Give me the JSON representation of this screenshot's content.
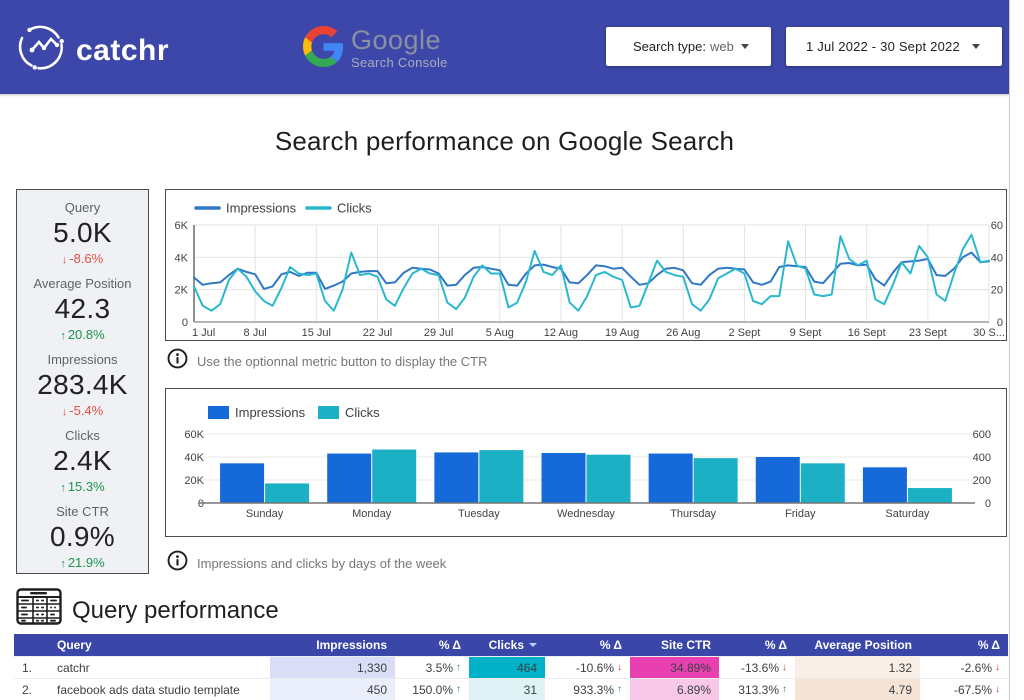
{
  "banner": {
    "brand": "catchr",
    "connector": {
      "name": "Google",
      "subtitle": "Search Console"
    },
    "search_type_control": {
      "label": "Search type:",
      "value": "web"
    },
    "date_range_control": {
      "value": "1 Jul 2022 - 30 Sept 2022"
    },
    "background_color": "#3c47a9"
  },
  "page_title": "Search performance on Google Search",
  "scorecards": [
    {
      "label": "Query",
      "value": "5.0K",
      "delta": "-8.6%",
      "direction": "down",
      "trend": "negative"
    },
    {
      "label": "Average Position",
      "value": "42.3",
      "delta": "20.8%",
      "direction": "up",
      "trend": "positive"
    },
    {
      "label": "Impressions",
      "value": "283.4K",
      "delta": "-5.4%",
      "direction": "down",
      "trend": "negative"
    },
    {
      "label": "Clicks",
      "value": "2.4K",
      "delta": "15.3%",
      "direction": "up",
      "trend": "positive"
    },
    {
      "label": "Site CTR",
      "value": "0.9%",
      "delta": "21.9%",
      "direction": "up",
      "trend": "positive"
    }
  ],
  "colors": {
    "impressions_line": "#3077c8",
    "clicks_line": "#2bb8cf",
    "impressions_bar": "#1669d8",
    "clicks_bar": "#1cb0c4",
    "delta_positive": "#1f9150",
    "delta_negative": "#df5146",
    "arrow_up": "#1f9150",
    "arrow_down": "#d93025"
  },
  "chart_data": [
    {
      "type": "line",
      "title": "Impressions and Clicks per day",
      "legend": [
        "Impressions",
        "Clicks"
      ],
      "x_tick_labels": [
        "1 Jul",
        "8 Jul",
        "15 Jul",
        "22 Jul",
        "29 Jul",
        "5 Aug",
        "12 Aug",
        "19 Aug",
        "26 Aug",
        "2 Sept",
        "9 Sept",
        "16 Sept",
        "23 Sept",
        "30 S..."
      ],
      "y_left": {
        "ticks": [
          0,
          2000,
          4000,
          6000
        ],
        "labels": [
          "0",
          "2K",
          "4K",
          "6K"
        ],
        "max": 6000
      },
      "y_right": {
        "ticks": [
          0,
          20,
          40,
          60
        ],
        "labels": [
          "0",
          "20",
          "40",
          "60"
        ],
        "max": 60
      },
      "grid": true,
      "legend_position": "top-left",
      "series": [
        {
          "name": "Impressions",
          "axis": "left",
          "color": "#3077c8",
          "values": [
            2750,
            2300,
            2400,
            2450,
            2900,
            3300,
            3100,
            2950,
            2050,
            2200,
            2950,
            3100,
            2850,
            3050,
            3050,
            2050,
            2250,
            2500,
            3000,
            3100,
            3150,
            3150,
            2400,
            2450,
            3050,
            3350,
            3300,
            3250,
            3000,
            2250,
            2300,
            2900,
            3350,
            3400,
            3300,
            3200,
            2300,
            2250,
            3000,
            3500,
            3550,
            3400,
            3300,
            2450,
            2400,
            2900,
            3500,
            3450,
            3300,
            3350,
            2800,
            2300,
            2400,
            2900,
            3300,
            3350,
            3200,
            2400,
            2300,
            2900,
            3300,
            3350,
            3300,
            3250,
            2450,
            2300,
            2500,
            3400,
            3500,
            3450,
            3400,
            2500,
            2400,
            3000,
            3600,
            3650,
            3500,
            3550,
            2650,
            2250,
            3050,
            3700,
            3750,
            3800,
            3900,
            2900,
            2850,
            3300,
            4000,
            4300,
            3700,
            3750
          ]
        },
        {
          "name": "Clicks",
          "axis": "right",
          "color": "#2bb8cf",
          "values": [
            22,
            10,
            7,
            11,
            26,
            33,
            28,
            19,
            13,
            10,
            21,
            34,
            30,
            29,
            30,
            13,
            7,
            20,
            43,
            29,
            30,
            28,
            14,
            10,
            21,
            30,
            33,
            30,
            29,
            12,
            8,
            15,
            28,
            35,
            30,
            30,
            9,
            12,
            25,
            44,
            31,
            29,
            35,
            12,
            7,
            16,
            29,
            31,
            28,
            26,
            9,
            10,
            24,
            38,
            31,
            29,
            28,
            11,
            7,
            14,
            27,
            30,
            33,
            30,
            13,
            11,
            16,
            16,
            50,
            35,
            33,
            17,
            16,
            17,
            53,
            39,
            35,
            38,
            14,
            11,
            23,
            37,
            30,
            47,
            40,
            17,
            13,
            30,
            45,
            54,
            37,
            38
          ]
        }
      ]
    },
    {
      "type": "bar",
      "title": "Impressions and clicks by days of the week",
      "legend": [
        "Impressions",
        "Clicks"
      ],
      "categories": [
        "Sunday",
        "Monday",
        "Tuesday",
        "Wednesday",
        "Thursday",
        "Friday",
        "Saturday"
      ],
      "y_left": {
        "ticks": [
          0,
          20000,
          40000,
          60000
        ],
        "labels": [
          "0",
          "20K",
          "40K",
          "60K"
        ],
        "max": 60000
      },
      "y_right": {
        "ticks": [
          0,
          200,
          400,
          600
        ],
        "labels": [
          "0",
          "200",
          "400",
          "600"
        ],
        "max": 600
      },
      "grid": true,
      "legend_position": "top-left",
      "series": [
        {
          "name": "Impressions",
          "axis": "left",
          "color": "#1669d8",
          "values": [
            34500,
            43000,
            44000,
            43500,
            43000,
            40000,
            31000
          ]
        },
        {
          "name": "Clicks",
          "axis": "right",
          "color": "#1cb0c4",
          "values": [
            170,
            465,
            460,
            420,
            390,
            345,
            130
          ]
        }
      ]
    }
  ],
  "notes": [
    "Use the optionnal metric button to display the CTR",
    "Impressions and clicks by days of the week"
  ],
  "table_section": {
    "title": "Query performance",
    "columns": [
      {
        "label": ""
      },
      {
        "label": "Query"
      },
      {
        "label": "Impressions"
      },
      {
        "label": "% Δ"
      },
      {
        "label": "Clicks",
        "sorted": true
      },
      {
        "label": "% Δ"
      },
      {
        "label": "Site CTR"
      },
      {
        "label": "% Δ"
      },
      {
        "label": "Average Position"
      },
      {
        "label": "% Δ"
      }
    ],
    "rows": [
      {
        "index": "1.",
        "query": "catchr",
        "cells": [
          {
            "value": "1,330",
            "bg": "#d9def6"
          },
          {
            "value": "3.5%",
            "arrow": "up"
          },
          {
            "value": "464",
            "bg": "#00b2c9"
          },
          {
            "value": "-10.6%",
            "arrow": "down"
          },
          {
            "value": "34.89%",
            "bg": "#e83fb1"
          },
          {
            "value": "-13.6%",
            "arrow": "down"
          },
          {
            "value": "1.32",
            "bg": "#f9efe7"
          },
          {
            "value": "-2.6%",
            "arrow": "down"
          }
        ]
      },
      {
        "index": "2.",
        "query": "facebook ads data studio template",
        "cells": [
          {
            "value": "450",
            "bg": "#eaedfa"
          },
          {
            "value": "150.0%",
            "arrow": "up"
          },
          {
            "value": "31",
            "bg": "#def2f5"
          },
          {
            "value": "933.3%",
            "arrow": "up"
          },
          {
            "value": "6.89%",
            "bg": "#f8c8e9"
          },
          {
            "value": "313.3%",
            "arrow": "up"
          },
          {
            "value": "4.79",
            "bg": "#f5e3d5"
          },
          {
            "value": "-67.5%",
            "arrow": "down"
          }
        ]
      }
    ]
  }
}
